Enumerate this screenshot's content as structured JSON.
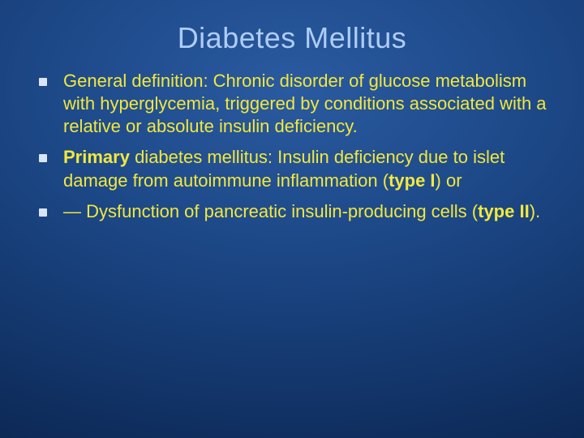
{
  "slide": {
    "title": "Diabetes Mellitus",
    "background_gradient": {
      "center_color": "#2a5aa0",
      "mid_color": "#153a72",
      "edge_color": "#081f42"
    },
    "title_color": "#aecdf5",
    "title_fontsize": 36,
    "bullet_marker_color": "#d9e6f9",
    "body_text_color": "#f2e83c",
    "body_fontsize": 22,
    "bullets": [
      {
        "runs": [
          {
            "text": "General definition: Chronic disorder of glucose metabolism with hyperglycemia, triggered by conditions associated with a relative or absolute insulin deficiency.",
            "bold": false
          }
        ]
      },
      {
        "runs": [
          {
            "text": "Primary",
            "bold": true
          },
          {
            "text": " diabetes mellitus: Insulin deficiency due to islet damage from autoimmune inflammation (",
            "bold": false
          },
          {
            "text": "type I",
            "bold": true
          },
          {
            "text": ") or",
            "bold": false
          }
        ]
      },
      {
        "runs": [
          {
            "text": "— Dysfunction of pancreatic insulin-producing cells (",
            "bold": false
          },
          {
            "text": "type II",
            "bold": true
          },
          {
            "text": ").",
            "bold": false
          }
        ]
      }
    ]
  }
}
